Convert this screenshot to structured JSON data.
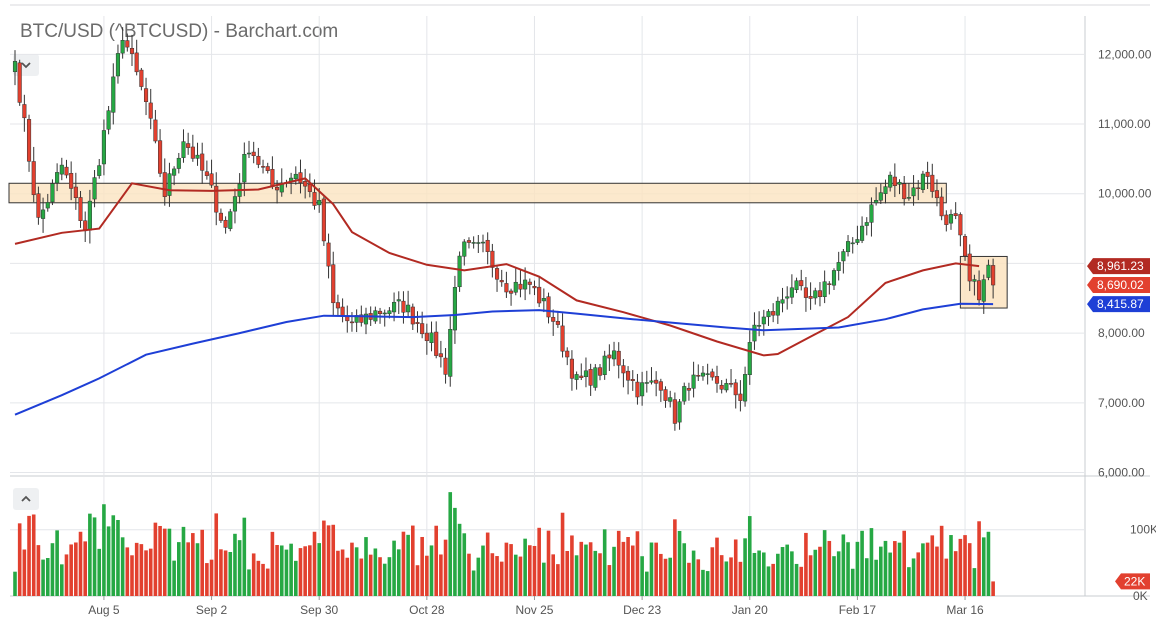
{
  "title": "BTC/USD (^BTCUSD) - Barchart.com",
  "collapse_main_icon": "chevron-down-icon",
  "collapse_volume_icon": "chevron-up-icon",
  "colors": {
    "up": "#26a844",
    "down": "#e2402f",
    "ma_short": "#b22a22",
    "ma_long": "#1e3fd6",
    "zone_fill": "#fbe3c0",
    "zone_stroke": "#333333",
    "grid": "#e4e6ea"
  },
  "chart_data": {
    "type": "candlestick",
    "x_tick_labels": [
      "Aug 5",
      "Sep 2",
      "Sep 30",
      "Oct 28",
      "Nov 25",
      "Dec 23",
      "Jan 20",
      "Feb 17",
      "Mar 16"
    ],
    "y_tick_labels": [
      "6,000.00",
      "7,000.00",
      "8,000.00",
      "9,000.00",
      "10,000.00",
      "11,000.00",
      "12,000.00"
    ],
    "ylim": [
      5950,
      12550
    ],
    "price_labels": [
      {
        "text": "8,961.23",
        "value": 8961.23,
        "color": "#b22a22"
      },
      {
        "text": "8,690.02",
        "value": 8690.02,
        "color": "#e2402f"
      },
      {
        "text": "8,415.87",
        "value": 8415.87,
        "color": "#1e3fd6"
      }
    ],
    "resistance_zone": {
      "low": 9870,
      "high": 10150,
      "from_day": 0,
      "to_day": 199
    },
    "consolidation_box": {
      "low": 8360,
      "high": 9100,
      "from_day": 202,
      "to_day": 212
    },
    "volume_axis_labels": [
      "100K",
      "0K"
    ],
    "volume_ylim": [
      0,
      175000
    ],
    "volume_last_label": "22K",
    "volume_last_value": 22000,
    "anchors": [
      [
        0,
        11900
      ],
      [
        5,
        9600
      ],
      [
        10,
        10400
      ],
      [
        15,
        9500
      ],
      [
        20,
        11200
      ],
      [
        23,
        12300
      ],
      [
        28,
        11300
      ],
      [
        32,
        10000
      ],
      [
        36,
        10800
      ],
      [
        41,
        10200
      ],
      [
        45,
        9500
      ],
      [
        50,
        10700
      ],
      [
        55,
        10100
      ],
      [
        60,
        10300
      ],
      [
        65,
        9800
      ],
      [
        68,
        8400
      ],
      [
        72,
        8100
      ],
      [
        77,
        8300
      ],
      [
        83,
        8400
      ],
      [
        88,
        8000
      ],
      [
        92,
        7500
      ],
      [
        95,
        9200
      ],
      [
        100,
        9200
      ],
      [
        105,
        8700
      ],
      [
        110,
        8700
      ],
      [
        115,
        8200
      ],
      [
        120,
        7300
      ],
      [
        124,
        7400
      ],
      [
        128,
        7700
      ],
      [
        133,
        7200
      ],
      [
        138,
        7300
      ],
      [
        141,
        6800
      ],
      [
        144,
        7300
      ],
      [
        150,
        7300
      ],
      [
        155,
        7100
      ],
      [
        158,
        8100
      ],
      [
        162,
        8300
      ],
      [
        166,
        8700
      ],
      [
        170,
        8400
      ],
      [
        175,
        8900
      ],
      [
        179,
        9300
      ],
      [
        183,
        9800
      ],
      [
        187,
        10200
      ],
      [
        191,
        10000
      ],
      [
        195,
        10300
      ],
      [
        198,
        9700
      ],
      [
        201,
        9600
      ],
      [
        204,
        8700
      ],
      [
        206,
        8600
      ],
      [
        207,
        8700
      ],
      [
        208,
        8950
      ],
      [
        209,
        8690
      ]
    ],
    "ma_short_pts": [
      [
        0,
        9280
      ],
      [
        10,
        9440
      ],
      [
        18,
        9500
      ],
      [
        25,
        10150
      ],
      [
        33,
        10050
      ],
      [
        42,
        10040
      ],
      [
        52,
        10060
      ],
      [
        62,
        10220
      ],
      [
        68,
        9850
      ],
      [
        72,
        9450
      ],
      [
        80,
        9150
      ],
      [
        88,
        8980
      ],
      [
        96,
        8900
      ],
      [
        105,
        8990
      ],
      [
        112,
        8810
      ],
      [
        120,
        8470
      ],
      [
        130,
        8300
      ],
      [
        140,
        8110
      ],
      [
        150,
        7880
      ],
      [
        160,
        7680
      ],
      [
        163,
        7700
      ],
      [
        170,
        7950
      ],
      [
        178,
        8230
      ],
      [
        186,
        8720
      ],
      [
        194,
        8900
      ],
      [
        201,
        9000
      ],
      [
        206,
        8961
      ]
    ],
    "ma_long_pts": [
      [
        0,
        6830
      ],
      [
        10,
        7110
      ],
      [
        18,
        7350
      ],
      [
        28,
        7690
      ],
      [
        38,
        7850
      ],
      [
        48,
        8000
      ],
      [
        58,
        8160
      ],
      [
        66,
        8250
      ],
      [
        76,
        8240
      ],
      [
        85,
        8230
      ],
      [
        94,
        8260
      ],
      [
        102,
        8310
      ],
      [
        112,
        8330
      ],
      [
        120,
        8280
      ],
      [
        132,
        8200
      ],
      [
        142,
        8140
      ],
      [
        152,
        8080
      ],
      [
        160,
        8040
      ],
      [
        168,
        8060
      ],
      [
        176,
        8080
      ],
      [
        186,
        8200
      ],
      [
        194,
        8340
      ],
      [
        202,
        8420
      ],
      [
        209,
        8416
      ]
    ]
  }
}
